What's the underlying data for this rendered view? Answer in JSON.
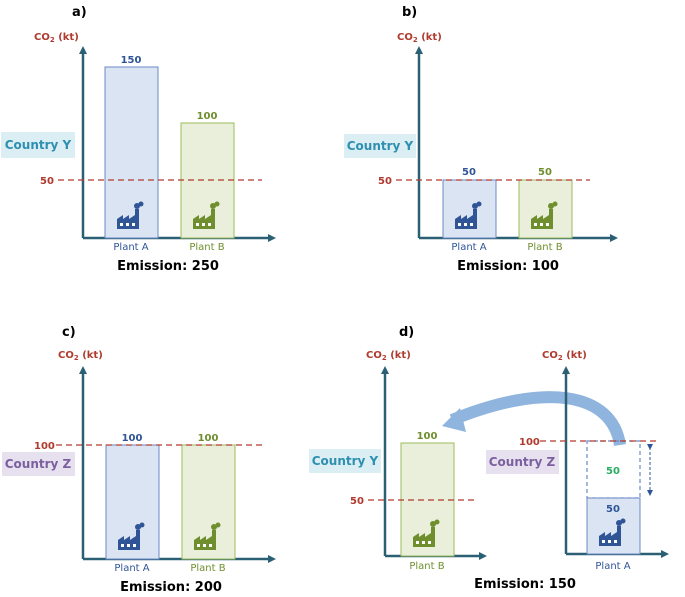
{
  "colors": {
    "axis": "#2b6074",
    "dash": "#b03a2e",
    "plant_a_fill": "#dbe4f3",
    "plant_a_stroke": "#6b88c4",
    "plant_a_text": "#2f5597",
    "plant_b_fill": "#e9efda",
    "plant_b_stroke": "#9bbb59",
    "plant_b_text": "#6f8f2f",
    "country_y_bg": "#dbeef3",
    "country_y_text": "#2e8fb0",
    "country_z_bg": "#e7e1ef",
    "country_z_text": "#7b5f9e",
    "arrow": "#8fb4dd",
    "green_label": "#27ae60"
  },
  "panels": {
    "a": {
      "letter": "a)",
      "ylabel_main": "CO",
      "ylabel_sub": "2",
      "ylabel_unit": " (kt)",
      "country": "Country Y",
      "threshold_label": "50",
      "bar_a_value": "150",
      "bar_b_value": "100",
      "plant_a_label": "Plant A",
      "plant_b_label": "Plant B",
      "emission": "Emission: 250"
    },
    "b": {
      "letter": "b)",
      "ylabel_main": "CO",
      "ylabel_sub": "2",
      "ylabel_unit": " (kt)",
      "country": "Country Y",
      "threshold_label": "50",
      "bar_a_value": "50",
      "bar_b_value": "50",
      "plant_a_label": "Plant A",
      "plant_b_label": "Plant B",
      "emission": "Emission: 100"
    },
    "c": {
      "letter": "c)",
      "ylabel_main": "CO",
      "ylabel_sub": "2",
      "ylabel_unit": " (kt)",
      "country": "Country Z",
      "threshold_label": "100",
      "bar_a_value": "100",
      "bar_b_value": "100",
      "plant_a_label": "Plant A",
      "plant_b_label": "Plant B",
      "emission": "Emission: 200"
    },
    "d": {
      "letter": "d)",
      "left": {
        "ylabel_main": "CO",
        "ylabel_sub": "2",
        "ylabel_unit": " (kt)",
        "country": "Country Y",
        "threshold_label": "50",
        "bar_value": "100",
        "plant_label": "Plant B"
      },
      "right": {
        "ylabel_main": "CO",
        "ylabel_sub": "2",
        "ylabel_unit": " (kt)",
        "country": "Country Z",
        "threshold_label": "100",
        "bar_value": "50",
        "transfer_value": "50",
        "plant_label": "Plant A"
      },
      "emission": "Emission: 150"
    }
  }
}
